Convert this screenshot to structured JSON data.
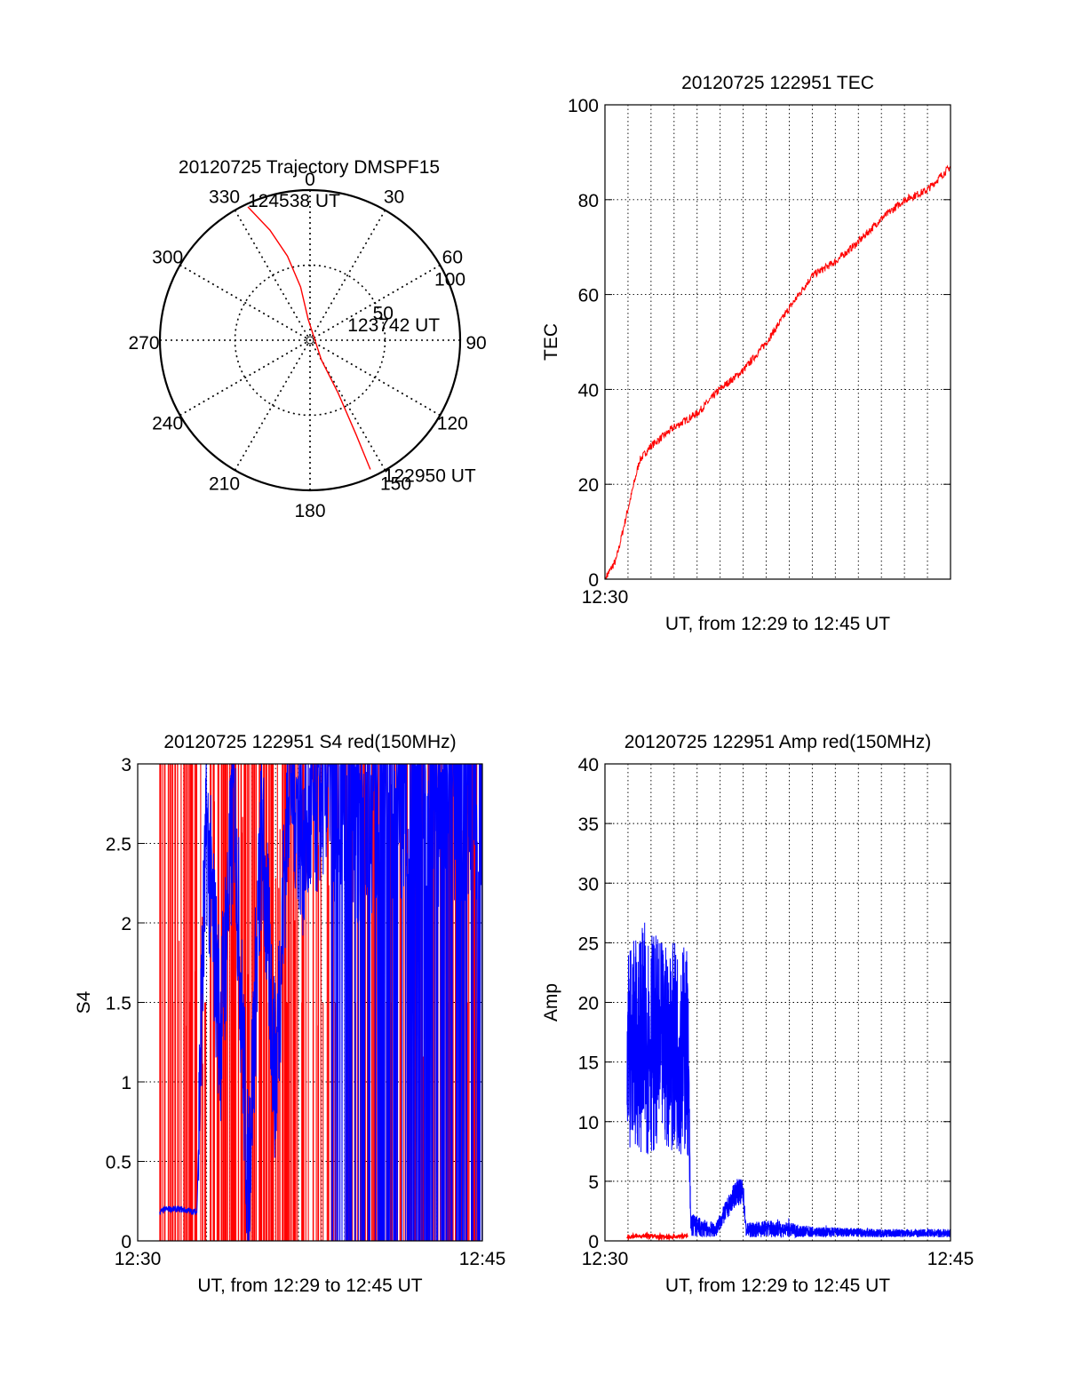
{
  "chart_data": [
    {
      "type": "polar",
      "title": "20120725 Trajectory DMSPF15",
      "angle_labels": [
        "0",
        "30",
        "60",
        "90",
        "120",
        "150",
        "180",
        "210",
        "240",
        "270",
        "300",
        "330"
      ],
      "radius_labels": [
        "50",
        "100"
      ],
      "rlim": [
        0,
        100
      ],
      "grid": true,
      "track_color": "#ff0000",
      "track": {
        "azimuth": [
          335,
          340,
          345,
          350,
          355,
          150,
          152,
          154,
          155
        ],
        "zenith": [
          98,
          78,
          58,
          36,
          14,
          15,
          40,
          70,
          95
        ]
      },
      "annotations": [
        {
          "text": "124538 UT",
          "azimuth": 335,
          "zenith": 98
        },
        {
          "text": "123742 UT",
          "azimuth": 70,
          "zenith": 14
        },
        {
          "text": "122950 UT",
          "azimuth": 150,
          "zenith": 98
        }
      ]
    },
    {
      "type": "line",
      "title": "20120725 122951 TEC",
      "xlabel": "UT, from 12:29 to 12:45 UT",
      "ylabel": "TEC",
      "xlim": [
        12.5,
        12.75
      ],
      "ylim": [
        0,
        100
      ],
      "yticks": [
        "0",
        "20",
        "40",
        "60",
        "80",
        "100"
      ],
      "xticklabels": [
        {
          "x": 12.5,
          "label": "12:30"
        }
      ],
      "grid": true,
      "series": [
        {
          "color": "#ff0000",
          "x": [
            12.5,
            12.508,
            12.516,
            12.525,
            12.533,
            12.55,
            12.567,
            12.583,
            12.6,
            12.617,
            12.633,
            12.65,
            12.667,
            12.683,
            12.7,
            12.717,
            12.733,
            12.75
          ],
          "values": [
            0,
            4,
            14,
            25,
            28,
            32,
            35,
            40,
            44,
            50,
            57,
            64,
            67,
            71,
            76,
            80,
            82,
            87
          ]
        }
      ]
    },
    {
      "type": "line",
      "title": "20120725 122951 S4 red(150MHz)",
      "xlabel": "UT, from 12:29 to 12:45 UT",
      "ylabel": "S4",
      "xlim": [
        12.5,
        12.75
      ],
      "ylim": [
        0,
        3
      ],
      "yticks": [
        "0",
        "0.5",
        "1",
        "1.5",
        "2",
        "2.5",
        "3"
      ],
      "xticklabels": [
        {
          "x": 12.5,
          "label": "12:30"
        },
        {
          "x": 12.75,
          "label": "12:45"
        }
      ],
      "grid": true,
      "series": [
        {
          "color": "#ff0000",
          "description_free": true,
          "x": [
            12.516,
            12.52,
            12.525,
            12.53,
            12.545,
            12.55,
            12.56,
            12.57,
            12.58,
            12.59,
            12.6,
            12.61,
            12.62,
            12.63,
            12.64,
            12.65,
            12.66,
            12.67,
            12.68,
            12.69,
            12.7,
            12.71,
            12.72
          ],
          "values": [
            3,
            3,
            3,
            3,
            3,
            3,
            3,
            3,
            3,
            3,
            3,
            3,
            3,
            3,
            3,
            3,
            3,
            3,
            3,
            3,
            3,
            3,
            3
          ]
        },
        {
          "color": "#0000ff",
          "x": [
            12.516,
            12.52,
            12.53,
            12.543,
            12.546,
            12.55,
            12.56,
            12.57,
            12.58,
            12.59,
            12.6,
            12.61,
            12.62,
            12.64,
            12.66,
            12.68,
            12.7,
            12.72,
            12.74
          ],
          "values": [
            0.18,
            0.2,
            0.2,
            0.18,
            1.4,
            2.6,
            1.3,
            2.8,
            0.3,
            2.6,
            1.0,
            3.0,
            2.5,
            3.0,
            2.9,
            3.0,
            3.0,
            3.0,
            3.0
          ]
        }
      ]
    },
    {
      "type": "line",
      "title": "20120725 122951 Amp red(150MHz)",
      "xlabel": "UT, from 12:29 to 12:45 UT",
      "ylabel": "Amp",
      "xlim": [
        12.5,
        12.75
      ],
      "ylim": [
        0,
        40
      ],
      "yticks": [
        "0",
        "5",
        "10",
        "15",
        "20",
        "25",
        "30",
        "35",
        "40"
      ],
      "xticklabels": [
        {
          "x": 12.5,
          "label": "12:30"
        },
        {
          "x": 12.75,
          "label": "12:45"
        }
      ],
      "grid": true,
      "series": [
        {
          "color": "#0000ff",
          "x": [
            12.516,
            12.52,
            12.53,
            12.54,
            12.56,
            12.562,
            12.57,
            12.58,
            12.595,
            12.6,
            12.602,
            12.62,
            12.65,
            12.7,
            12.75
          ],
          "values": [
            16,
            18,
            17,
            16,
            15,
            1.8,
            1.2,
            1.0,
            4.5,
            4.5,
            1.0,
            0.9,
            0.7,
            0.6,
            0.6
          ],
          "band_low": [
            7,
            8,
            7,
            8,
            7,
            0.3,
            0.3,
            0.3,
            3.0,
            3.0,
            0.3,
            0.3,
            0.3,
            0.3,
            0.3
          ],
          "band_high": [
            25,
            25,
            27,
            25,
            25,
            2.5,
            1.8,
            1.5,
            5.2,
            5.2,
            1.5,
            1.8,
            1.2,
            1.0,
            1.0
          ]
        },
        {
          "color": "#ff0000",
          "x": [
            12.516,
            12.53,
            12.545,
            12.56
          ],
          "values": [
            0.2,
            0.3,
            0.2,
            0.3
          ]
        }
      ]
    }
  ]
}
